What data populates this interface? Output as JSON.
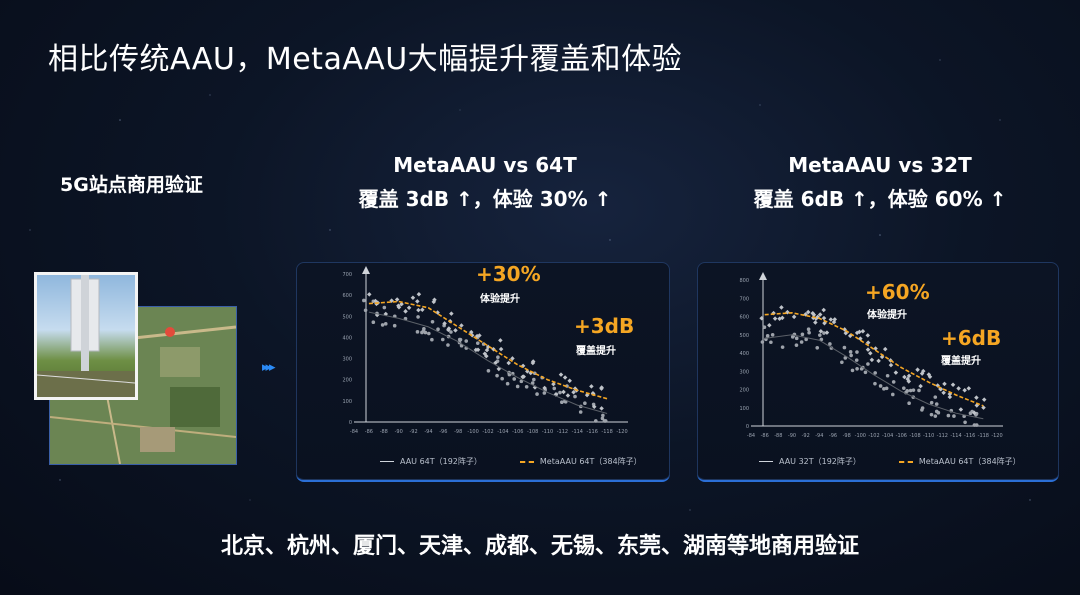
{
  "title": "相比传统AAU，MetaAAU大幅提升覆盖和体验",
  "site_label": "5G站点商用验证",
  "comparisons": [
    {
      "heading": "MetaAAU vs 64T",
      "summary": "覆盖 3dB ↑，体验 30% ↑",
      "experience_gain": "+30%",
      "experience_label": "体验提升",
      "coverage_gain": "+3dB",
      "coverage_label": "覆盖提升",
      "legend": [
        "AAU 64T（192阵子）",
        "MetaAAU 64T（384阵子）"
      ]
    },
    {
      "heading": "MetaAAU vs 32T",
      "summary": "覆盖 6dB ↑，体验 60% ↑",
      "experience_gain": "+60%",
      "experience_label": "体验提升",
      "coverage_gain": "+6dB",
      "coverage_label": "覆盖提升",
      "legend": [
        "AAU 32T（192阵子）",
        "MetaAAU 64T（384阵子）"
      ]
    }
  ],
  "footer": "北京、杭州、厦门、天津、成都、无锡、东莞、湖南等地商用验证",
  "colors": {
    "accent": "#f5a623",
    "panel_border": "#2b6fd6"
  },
  "chart_data": [
    {
      "type": "scatter",
      "x": [
        -84,
        -86,
        -88,
        -90,
        -92,
        -94,
        -96,
        -98,
        -100,
        -102,
        -104,
        -106,
        -108,
        -110,
        -112,
        -114,
        -116,
        -118,
        -120
      ],
      "yticks": [
        0,
        100,
        200,
        300,
        400,
        500,
        600,
        700
      ],
      "ylim": [
        0,
        700
      ],
      "xlim": [
        -84,
        -120
      ],
      "series": [
        {
          "name": "AAU 64T（192阵子）",
          "x": [
            -86,
            -90,
            -94,
            -98,
            -102,
            -106,
            -110,
            -114,
            -118
          ],
          "y": [
            520,
            490,
            450,
            380,
            290,
            210,
            140,
            80,
            40
          ]
        },
        {
          "name": "MetaAAU 64T（384阵子）",
          "x": [
            -86,
            -90,
            -94,
            -98,
            -102,
            -106,
            -110,
            -114,
            -118
          ],
          "y": [
            560,
            570,
            540,
            450,
            360,
            270,
            200,
            150,
            110
          ]
        }
      ]
    },
    {
      "type": "scatter",
      "x": [
        -84,
        -86,
        -88,
        -90,
        -92,
        -94,
        -96,
        -98,
        -100,
        -102,
        -104,
        -106,
        -108,
        -110,
        -112,
        -114,
        -116,
        -118,
        -120
      ],
      "yticks": [
        0,
        100,
        200,
        300,
        400,
        500,
        600,
        700,
        800
      ],
      "ylim": [
        0,
        800
      ],
      "xlim": [
        -84,
        -120
      ],
      "series": [
        {
          "name": "AAU 32T（192阵子）",
          "x": [
            -86,
            -90,
            -94,
            -98,
            -102,
            -106,
            -110,
            -114,
            -118
          ],
          "y": [
            480,
            500,
            470,
            380,
            280,
            190,
            120,
            70,
            40
          ]
        },
        {
          "name": "MetaAAU 64T（384阵子）",
          "x": [
            -86,
            -90,
            -94,
            -98,
            -102,
            -106,
            -110,
            -114,
            -118
          ],
          "y": [
            610,
            620,
            590,
            520,
            420,
            320,
            240,
            170,
            110
          ]
        }
      ]
    }
  ]
}
